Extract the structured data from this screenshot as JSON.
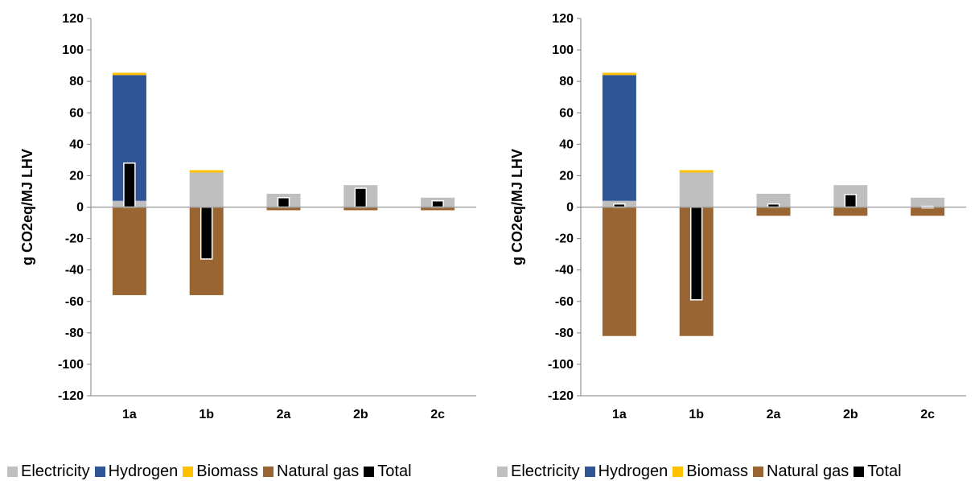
{
  "chart_data": [
    {
      "type": "bar",
      "stacked": true,
      "categories": [
        "1a",
        "1b",
        "2a",
        "2b",
        "2c"
      ],
      "ylabel": "g CO2eq/MJ LHV",
      "ylim": [
        -120,
        120
      ],
      "yticks": [
        -120,
        -100,
        -80,
        -60,
        -40,
        -20,
        0,
        20,
        40,
        60,
        80,
        100,
        120
      ],
      "grid": false,
      "legend": "bottom",
      "series": [
        {
          "name": "Electricity",
          "color": "#BFBFBF",
          "values": [
            4,
            22,
            8.5,
            14,
            6
          ]
        },
        {
          "name": "Hydrogen",
          "color": "#2F5597",
          "values": [
            80,
            0,
            0,
            0,
            0
          ]
        },
        {
          "name": "Biomass",
          "color": "#FFC000",
          "values": [
            1.5,
            1.5,
            0,
            0,
            0
          ]
        },
        {
          "name": "Natural gas",
          "color": "#996633",
          "values": [
            -56,
            -56,
            -2,
            -2,
            -2
          ]
        }
      ],
      "total": {
        "name": "Total",
        "color": "#000000",
        "values": [
          28,
          -33,
          6,
          12,
          4
        ]
      }
    },
    {
      "type": "bar",
      "stacked": true,
      "categories": [
        "1a",
        "1b",
        "2a",
        "2b",
        "2c"
      ],
      "ylabel": "g CO2eq/MJ LHV",
      "ylim": [
        -120,
        120
      ],
      "yticks": [
        -120,
        -100,
        -80,
        -60,
        -40,
        -20,
        0,
        20,
        40,
        60,
        80,
        100,
        120
      ],
      "grid": false,
      "legend": "bottom",
      "series": [
        {
          "name": "Electricity",
          "color": "#BFBFBF",
          "values": [
            4,
            22,
            8.5,
            14,
            6
          ]
        },
        {
          "name": "Hydrogen",
          "color": "#2F5597",
          "values": [
            80,
            0,
            0,
            0,
            0
          ]
        },
        {
          "name": "Biomass",
          "color": "#FFC000",
          "values": [
            1.5,
            1.5,
            0,
            0,
            0
          ]
        },
        {
          "name": "Natural gas",
          "color": "#996633",
          "values": [
            -82,
            -82,
            -5.5,
            -5.5,
            -5.5
          ]
        }
      ],
      "total": {
        "name": "Total",
        "color": "#000000",
        "values": [
          2,
          -59,
          2,
          8,
          0.5
        ]
      }
    }
  ]
}
